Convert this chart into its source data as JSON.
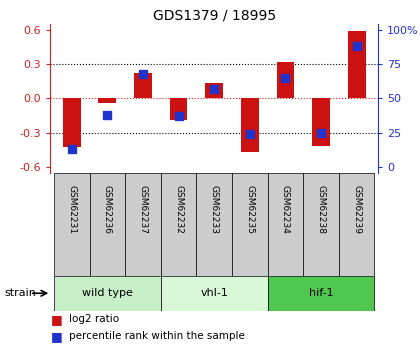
{
  "title": "GDS1379 / 18995",
  "samples": [
    "GSM62231",
    "GSM62236",
    "GSM62237",
    "GSM62232",
    "GSM62233",
    "GSM62235",
    "GSM62234",
    "GSM62238",
    "GSM62239"
  ],
  "log2_ratios": [
    -0.43,
    -0.04,
    0.22,
    -0.19,
    0.13,
    -0.47,
    0.32,
    -0.42,
    0.59
  ],
  "percentile_ranks": [
    13,
    38,
    68,
    37,
    57,
    24,
    65,
    25,
    88
  ],
  "groups": [
    {
      "label": "wild type",
      "start": 0,
      "end": 3,
      "color": "#c8f0c8"
    },
    {
      "label": "vhl-1",
      "start": 3,
      "end": 6,
      "color": "#d8f8d8"
    },
    {
      "label": "hif-1",
      "start": 6,
      "end": 9,
      "color": "#50c850"
    }
  ],
  "ylim": [
    -0.65,
    0.65
  ],
  "yticks_left": [
    -0.6,
    -0.3,
    0.0,
    0.3,
    0.6
  ],
  "yticks_right_vals": [
    0,
    25,
    50,
    75,
    100
  ],
  "yticks_right_labels": [
    "0",
    "25",
    "50",
    "75",
    "100%"
  ],
  "bar_color": "#cc1111",
  "dot_color": "#2233cc",
  "zero_line_color": "#dd2222",
  "grid_color": "#000000",
  "sample_bg": "#cccccc",
  "bar_width": 0.5,
  "dot_size": 30,
  "left_tick_color": "#cc2222",
  "right_tick_color": "#2233cc"
}
